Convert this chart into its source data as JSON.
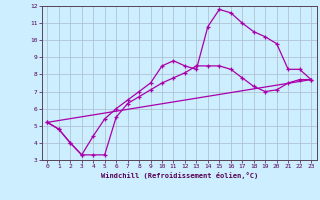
{
  "xlabel": "Windchill (Refroidissement éolien,°C)",
  "background_color": "#cceeff",
  "grid_color": "#aabbcc",
  "line_color": "#aa00aa",
  "xlim": [
    -0.5,
    23.5
  ],
  "ylim": [
    3,
    12
  ],
  "xticks": [
    0,
    1,
    2,
    3,
    4,
    5,
    6,
    7,
    8,
    9,
    10,
    11,
    12,
    13,
    14,
    15,
    16,
    17,
    18,
    19,
    20,
    21,
    22,
    23
  ],
  "yticks": [
    3,
    4,
    5,
    6,
    7,
    8,
    9,
    10,
    11,
    12
  ],
  "series": [
    {
      "x": [
        0,
        23
      ],
      "y": [
        5.2,
        7.7
      ],
      "markers": false
    },
    {
      "x": [
        0,
        1,
        2,
        3,
        4,
        5,
        6,
        7,
        8,
        9,
        10,
        11,
        12,
        13,
        14,
        15,
        16,
        17,
        18,
        19,
        20,
        21,
        22,
        23
      ],
      "y": [
        5.2,
        4.8,
        4.0,
        3.3,
        3.3,
        3.3,
        5.5,
        6.3,
        6.7,
        7.1,
        7.5,
        7.8,
        8.1,
        8.5,
        8.5,
        8.5,
        8.3,
        7.8,
        7.3,
        7.0,
        7.1,
        7.5,
        7.7,
        7.7
      ],
      "markers": true
    },
    {
      "x": [
        0,
        1,
        2,
        3,
        4,
        5,
        6,
        7,
        8,
        9,
        10,
        11,
        12,
        13,
        14,
        15,
        16,
        17,
        18,
        19,
        20,
        21,
        22,
        23
      ],
      "y": [
        5.2,
        4.8,
        4.0,
        3.3,
        4.4,
        5.4,
        6.0,
        6.5,
        7.0,
        7.5,
        8.5,
        8.8,
        8.5,
        8.3,
        10.8,
        11.8,
        11.6,
        11.0,
        10.5,
        10.2,
        9.8,
        8.3,
        8.3,
        7.7
      ],
      "markers": true
    }
  ]
}
